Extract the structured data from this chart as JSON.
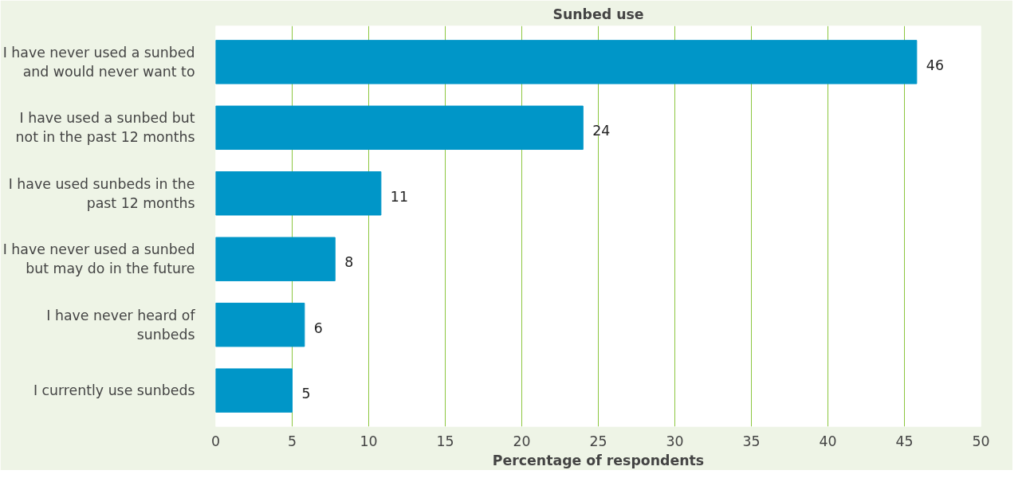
{
  "chart_data": {
    "type": "bar",
    "orientation": "horizontal",
    "title": "Sunbed use",
    "xlabel": "Percentage of respondents",
    "categories": [
      "I have never used a sunbed and would never want to",
      "I have used a sunbed but not in the past 12 months",
      "I have used sunbeds in the past 12 months",
      "I have never used a sunbed but may do in the future",
      "I have never heard of sunbeds",
      "I currently use sunbeds"
    ],
    "values": [
      45.8,
      24.0,
      10.8,
      7.8,
      5.8,
      5.0
    ],
    "value_labels": [
      "46",
      "24",
      "11",
      "8",
      "6",
      "5"
    ],
    "color": "#0096c8",
    "xlim": [
      0,
      50
    ],
    "xticks": [
      0,
      5,
      10,
      15,
      20,
      25,
      30,
      35,
      40,
      45,
      50
    ],
    "grid": "x"
  }
}
